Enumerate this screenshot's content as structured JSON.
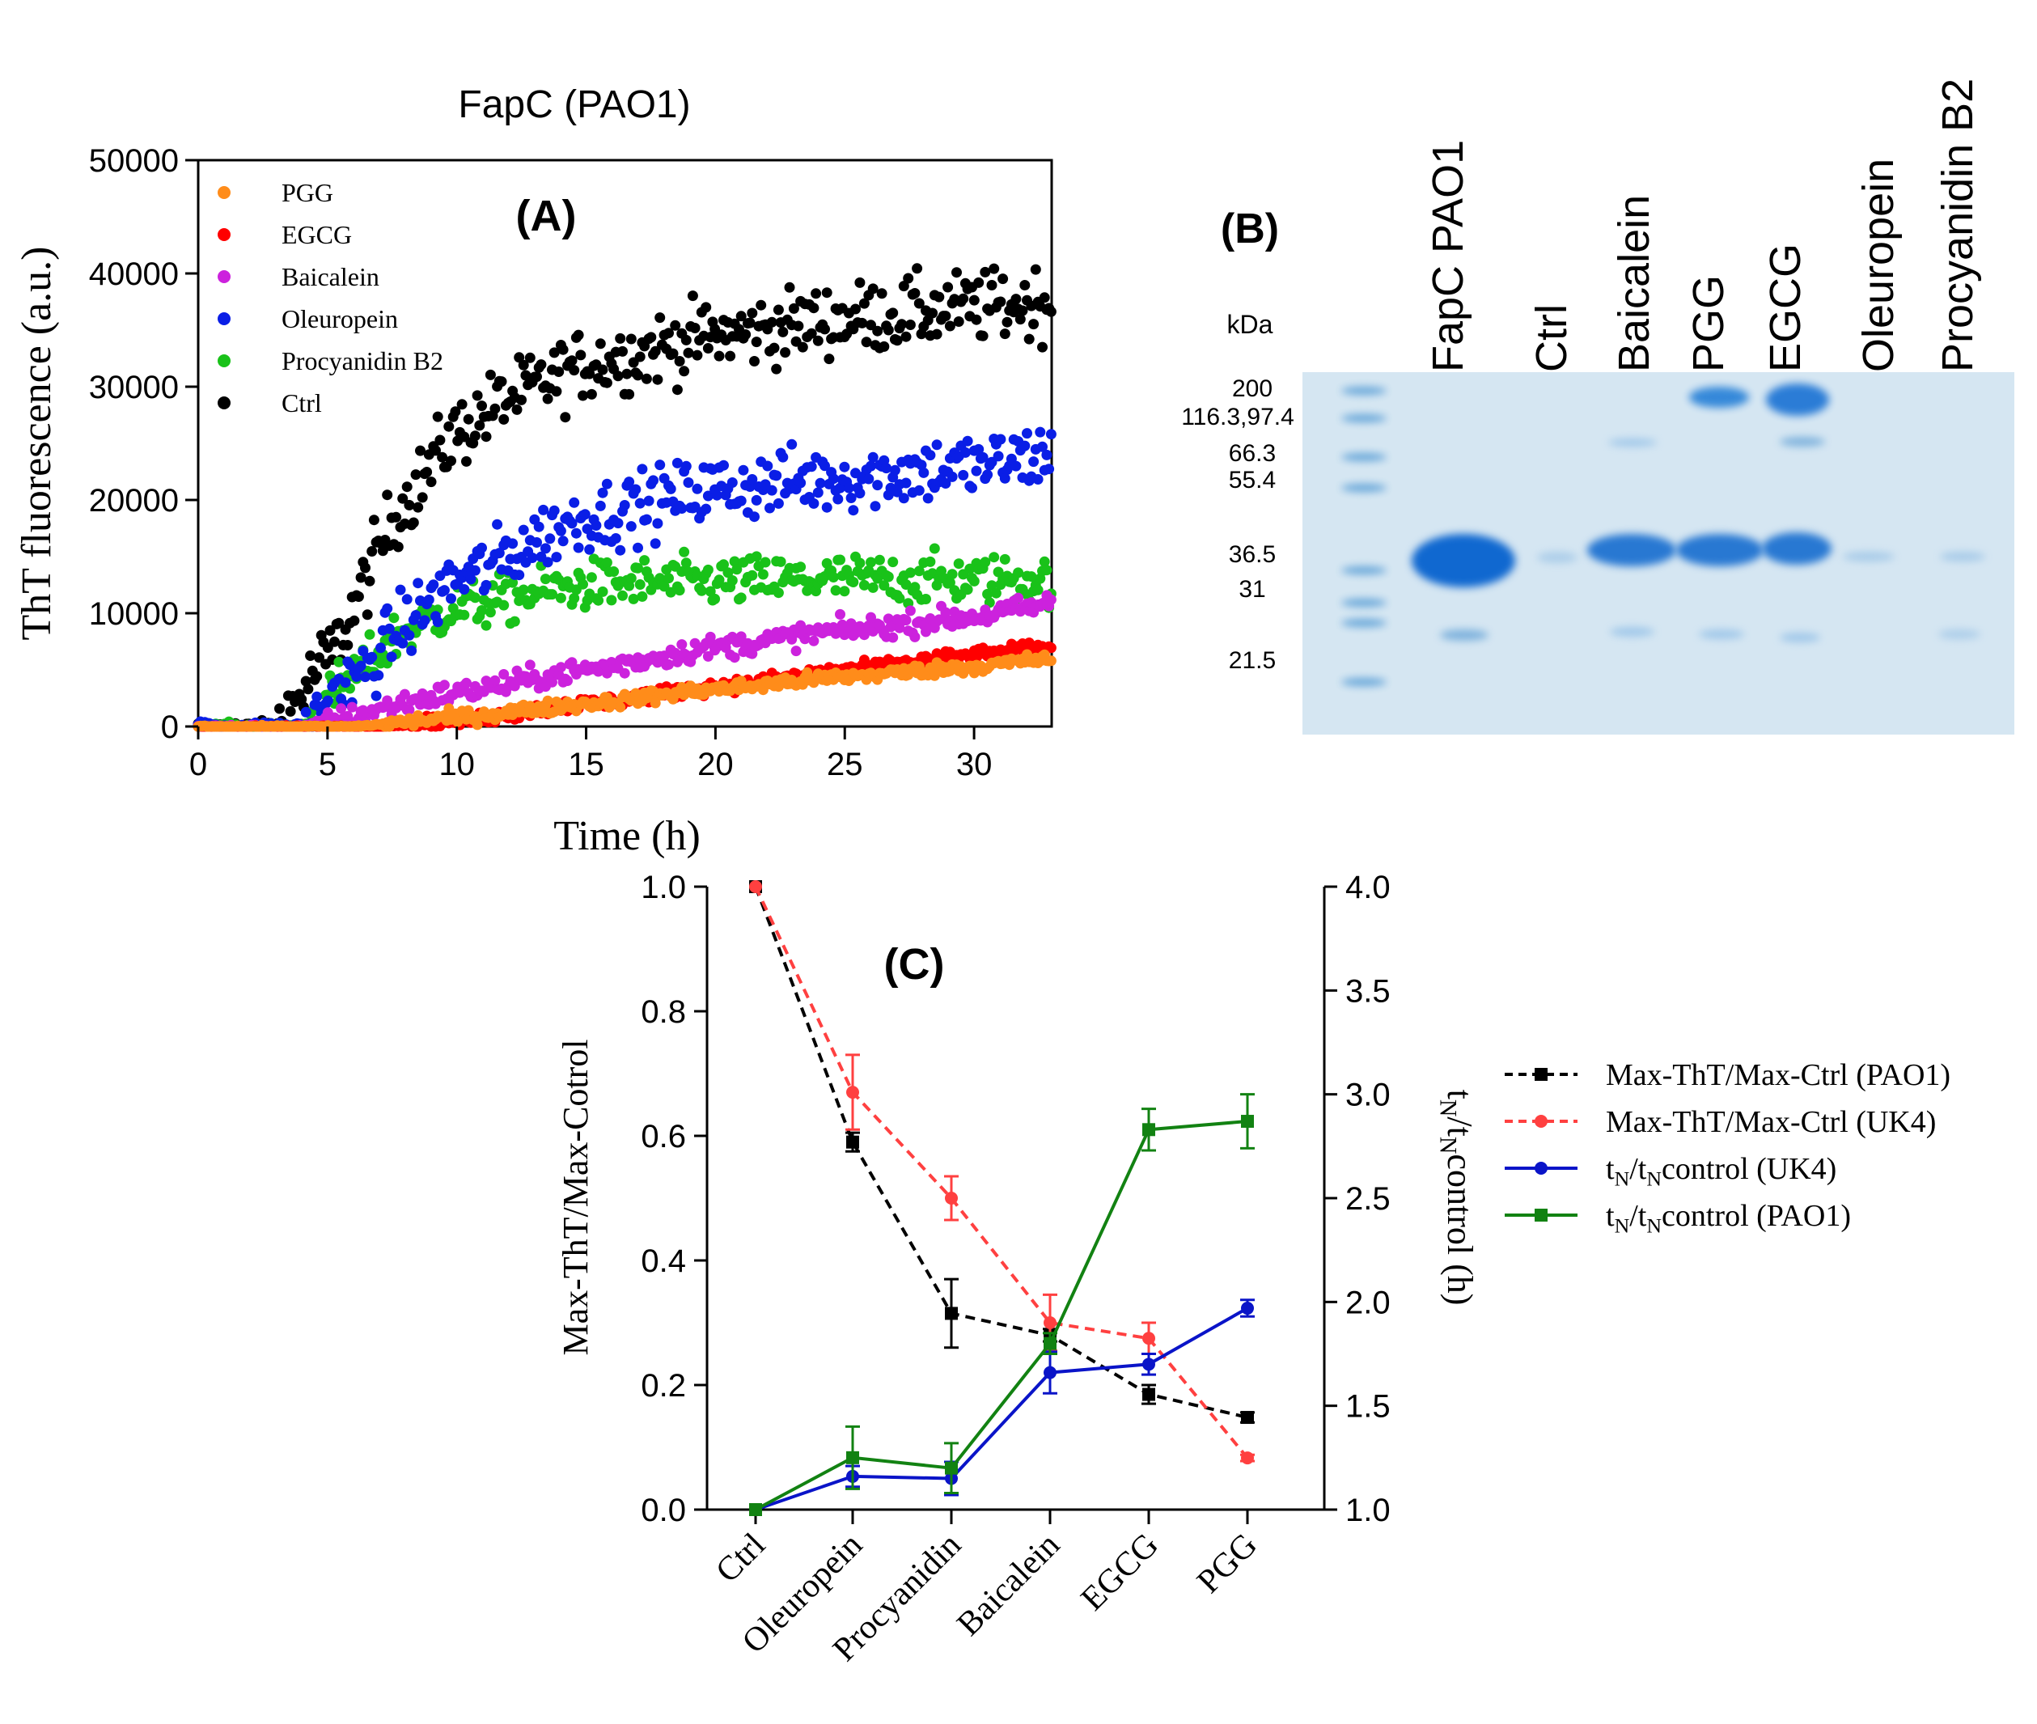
{
  "panelA": {
    "title": "FapC (PAO1)",
    "panel_label": "(A)",
    "legend": [
      "PGG",
      "EGCG",
      "Baicalein",
      "Oleuropein",
      "Procyanidin B2",
      "Ctrl"
    ],
    "colors": {
      "PGG": "#ff8c1a",
      "EGCG": "#ff0000",
      "Baicalein": "#cc22dd",
      "Oleuropein": "#0a1ee6",
      "Procyanidin B2": "#19c219",
      "Ctrl": "#000000"
    }
  },
  "panelB": {
    "panel_label": "(B)",
    "kda_label": "kDa",
    "markers": [
      "200",
      "116.3, 97.4",
      "66.3",
      "55.4",
      "36.5",
      "31",
      "21.5"
    ],
    "lanes": [
      "FapC PAO1",
      "Ctrl",
      "Baicalein",
      "PGG",
      "EGCG",
      "Oleuropein",
      "Procyanidin B2"
    ]
  },
  "panelC": {
    "panel_label": "(C)",
    "legend": [
      {
        "label": "Max-ThT/Max-Ctrl (PAO1)",
        "color": "#000000",
        "style": "dashed",
        "marker": "square"
      },
      {
        "label": "Max-ThT/Max-Ctrl (UK4)",
        "color": "#ff4040",
        "style": "dashed",
        "marker": "circle"
      },
      {
        "label": "tN/tNcontrol (UK4)",
        "color": "#0a14c8",
        "style": "solid",
        "marker": "circle"
      },
      {
        "label": "tN/tNcontrol (PAO1)",
        "color": "#128212",
        "style": "solid",
        "marker": "square"
      }
    ]
  },
  "chart_data": [
    {
      "type": "scatter",
      "title": "FapC (PAO1)",
      "xlabel": "Time (h)",
      "ylabel": "ThT fluorescence (a.u.)",
      "xlim": [
        0,
        33
      ],
      "ylim": [
        0,
        50000
      ],
      "xticks": [
        0,
        5,
        10,
        15,
        20,
        25,
        30
      ],
      "yticks": [
        0,
        10000,
        20000,
        30000,
        40000,
        50000
      ],
      "series": [
        {
          "name": "Ctrl",
          "color": "#000000",
          "model": {
            "lag": 3.2,
            "plateau": 37500,
            "rate": 0.17,
            "noise": 1600
          },
          "x": [
            0,
            3,
            5,
            8,
            10,
            12,
            15,
            20,
            25,
            30,
            33
          ],
          "y": [
            0,
            0,
            6000,
            20000,
            26000,
            29000,
            32000,
            34500,
            36000,
            37000,
            37500
          ]
        },
        {
          "name": "Oleuropein",
          "color": "#0a1ee6",
          "model": {
            "lag": 4.3,
            "plateau": 24000,
            "rate": 0.13,
            "noise": 1500
          },
          "x": [
            0,
            4,
            6,
            8,
            10,
            15,
            20,
            25,
            30,
            33
          ],
          "y": [
            0,
            0,
            4000,
            9000,
            13000,
            18500,
            21000,
            22000,
            23000,
            24000
          ]
        },
        {
          "name": "Procyanidin B2",
          "color": "#19c219",
          "model": {
            "lag": 4.3,
            "plateau": 13000,
            "rate": 0.28,
            "noise": 1100
          },
          "x": [
            0,
            4,
            6,
            8,
            10,
            15,
            20,
            25,
            30,
            33
          ],
          "y": [
            0,
            0,
            4500,
            8500,
            10500,
            12500,
            12800,
            13000,
            13000,
            13000
          ]
        },
        {
          "name": "Baicalein",
          "color": "#cc22dd",
          "model": {
            "lag": 4.0,
            "plateau": 10800,
            "rate": 0.0,
            "noise": 500
          },
          "x": [
            0,
            4,
            10,
            15,
            20,
            25,
            30,
            33
          ],
          "y": [
            0,
            0,
            3000,
            5000,
            7000,
            8500,
            9700,
            10800
          ]
        },
        {
          "name": "EGCG",
          "color": "#ff0000",
          "model": {
            "lag": 7.0,
            "plateau": 7000,
            "rate": 0.0,
            "noise": 300
          },
          "x": [
            0,
            7,
            10,
            15,
            20,
            25,
            30,
            33
          ],
          "y": [
            0,
            0,
            500,
            2000,
            3500,
            5000,
            6300,
            7000
          ]
        },
        {
          "name": "PGG",
          "color": "#ff8c1a",
          "model": {
            "lag": 6.0,
            "plateau": 6000,
            "rate": 0.0,
            "noise": 300
          },
          "x": [
            0,
            6,
            10,
            15,
            20,
            25,
            30,
            33
          ],
          "y": [
            0,
            0,
            800,
            2000,
            3300,
            4400,
            5300,
            6000
          ]
        }
      ]
    },
    {
      "type": "line",
      "categories": [
        "Ctrl",
        "Oleuropein",
        "Procyanidin",
        "Baicalein",
        "EGCG",
        "PGG"
      ],
      "ylabel": "Max-ThT/Max-Cotrol",
      "y2label": "tN/tNcontrol (h)",
      "ylim": [
        0,
        1.0
      ],
      "yticks": [
        0.0,
        0.2,
        0.4,
        0.6,
        0.8,
        1.0
      ],
      "y2lim": [
        1.0,
        4.0
      ],
      "y2ticks": [
        1.0,
        1.5,
        2.0,
        2.5,
        3.0,
        3.5,
        4.0
      ],
      "series": [
        {
          "name": "Max-ThT/Max-Ctrl (PAO1)",
          "axis": "left",
          "values": [
            1.0,
            0.59,
            0.315,
            0.28,
            0.185,
            0.148
          ],
          "errors": [
            0,
            0.015,
            0.055,
            0.01,
            0.015,
            0.008
          ]
        },
        {
          "name": "Max-ThT/Max-Ctrl (UK4)",
          "axis": "left",
          "values": [
            1.0,
            0.67,
            0.5,
            0.3,
            0.275,
            0.083
          ],
          "errors": [
            0,
            0.06,
            0.035,
            0.045,
            0.025,
            0.005
          ]
        },
        {
          "name": "tN/tNcontrol (UK4)",
          "axis": "right",
          "values": [
            1.0,
            1.16,
            1.15,
            1.66,
            1.7,
            1.97
          ],
          "errors": [
            0,
            0.05,
            0.08,
            0.1,
            0.05,
            0.04
          ]
        },
        {
          "name": "tN/tNcontrol (PAO1)",
          "axis": "right",
          "values": [
            1.0,
            1.25,
            1.2,
            1.8,
            2.83,
            2.87
          ],
          "errors": [
            0,
            0.15,
            0.12,
            0.05,
            0.1,
            0.13
          ]
        }
      ]
    }
  ]
}
